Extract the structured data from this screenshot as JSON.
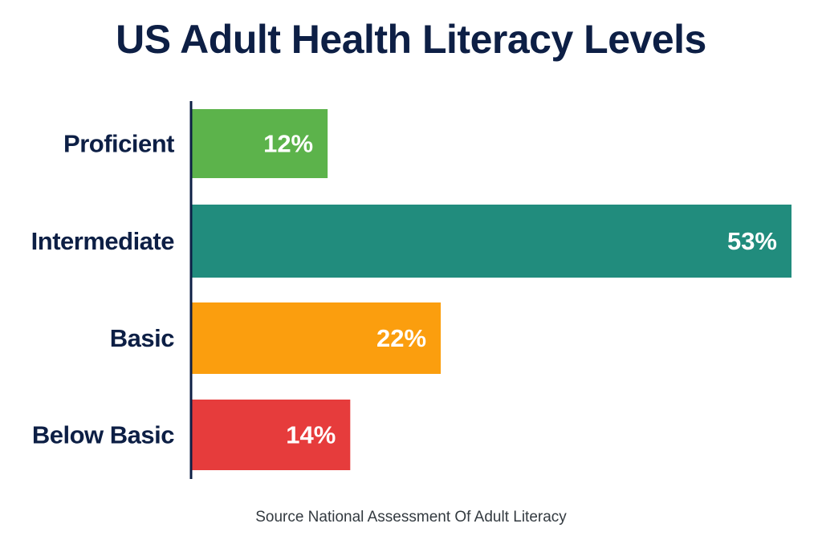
{
  "chart_data": {
    "type": "bar",
    "orientation": "horizontal",
    "title": "US Adult Health Literacy Levels",
    "categories": [
      "Proficient",
      "Intermediate",
      "Basic",
      "Below Basic"
    ],
    "values": [
      12,
      53,
      22,
      14
    ],
    "value_labels": [
      "12%",
      "53%",
      "22%",
      "14%"
    ],
    "colors": [
      "#5cb34b",
      "#218c7d",
      "#fb9e0e",
      "#e63c3c"
    ],
    "xlim": [
      0,
      53
    ],
    "grid": false,
    "legend": "none",
    "source": "Source National Assessment Of Adult Literacy"
  },
  "style": {
    "title_color": "#0d1f45",
    "label_color": "#0d1f45",
    "axis_color": "#0d1f45"
  }
}
